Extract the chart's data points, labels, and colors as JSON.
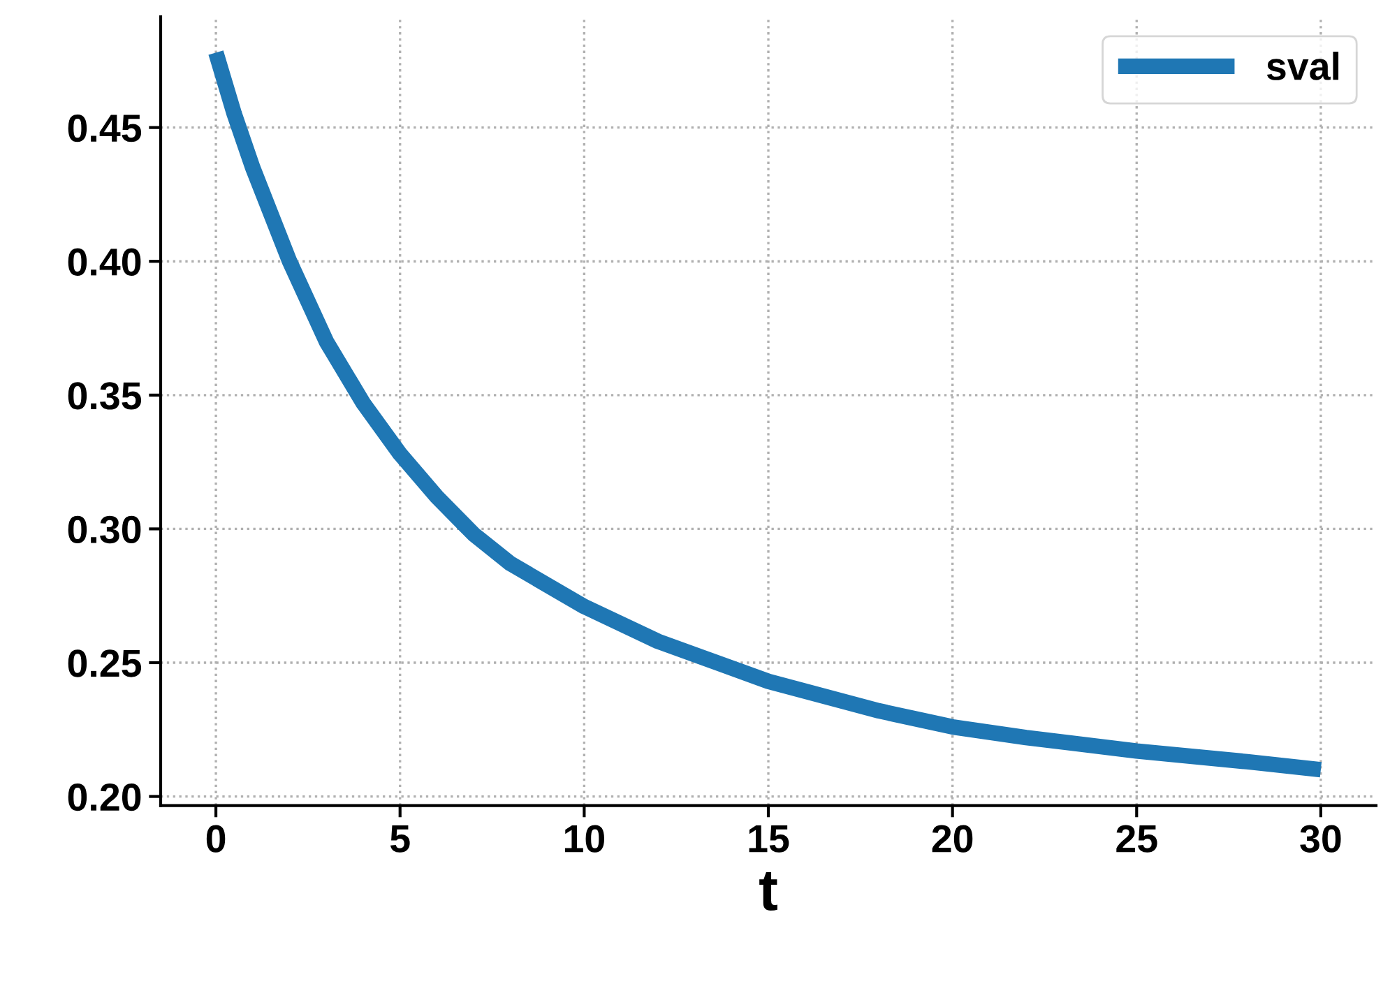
{
  "chart_data": {
    "type": "line",
    "xlabel": "t",
    "x": [
      0,
      0.5,
      1,
      2,
      3,
      4,
      5,
      6,
      7,
      8,
      10,
      12,
      15,
      18,
      20,
      22,
      25,
      28,
      30
    ],
    "series": [
      {
        "name": "sval",
        "color": "#1f77b4",
        "values": [
          0.478,
          0.455,
          0.435,
          0.4,
          0.37,
          0.347,
          0.328,
          0.312,
          0.298,
          0.287,
          0.271,
          0.258,
          0.243,
          0.232,
          0.226,
          0.222,
          0.217,
          0.213,
          0.21
        ]
      }
    ],
    "xlim": [
      -1.5,
      31.5
    ],
    "ylim": [
      0.1966,
      0.4914
    ],
    "xticks": [
      0,
      5,
      10,
      15,
      20,
      25,
      30
    ],
    "yticks": [
      {
        "value": 0.2,
        "label": "0.20"
      },
      {
        "value": 0.25,
        "label": "0.25"
      },
      {
        "value": 0.3,
        "label": "0.30"
      },
      {
        "value": 0.35,
        "label": "0.35"
      },
      {
        "value": 0.4,
        "label": "0.40"
      },
      {
        "value": 0.45,
        "label": "0.45"
      }
    ],
    "grid": true,
    "legend": "top right",
    "line_style": "solid",
    "marker": "none"
  }
}
